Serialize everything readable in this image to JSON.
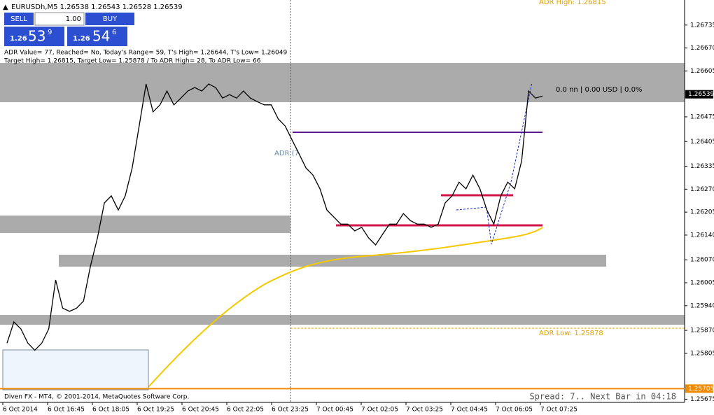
{
  "symbol_bar": "EURUSDh,M5  1.26538 1.26543 1.26528 1.26539",
  "trade_panel": {
    "sell": "SELL",
    "buy": "BUY",
    "lots": "1.00",
    "bid_big": "1.26",
    "bid_mid": "53",
    "bid_small": "9",
    "ask_big": "1.26",
    "ask_mid": "54",
    "ask_small": "6"
  },
  "info_lines": [
    "ADR Value= 77, Reached= No, Today's Range= 59, T's High= 1.26644, T's Low= 1.26049",
    "Target High= 1.26815, Target Low= 1.25878 / To ADR High= 28, To ADR Low= 66"
  ],
  "labels": {
    "adr_high": "ADR High: 1.26815",
    "adr_low": "ADR Low: 1.25878",
    "adr_tag": "ADR (7",
    "pnl": "0.0 nn | 0.00 USD | 0.0%"
  },
  "footer": "Diven FX - MT4, © 2001-2014, MetaQuotes Software Corp.",
  "status": "Spread: 7.. Next Bar in 04:18",
  "chart_data": {
    "type": "line",
    "time_labels": [
      "6 Oct 2014",
      "6 Oct 16:45",
      "6 Oct 18:05",
      "6 Oct 19:25",
      "6 Oct 20:45",
      "6 Oct 22:05",
      "6 Oct 23:25",
      "7 Oct 00:45",
      "7 Oct 02:05",
      "7 Oct 03:25",
      "7 Oct 04:45",
      "7 Oct 06:05",
      "7 Oct 07:25"
    ],
    "series": [
      {
        "name": "EURUSDh,M5",
        "color": "#000000",
        "values": [
          1.25834,
          1.25894,
          1.25874,
          1.25834,
          1.25814,
          1.25834,
          1.25874,
          1.26013,
          1.25933,
          1.25924,
          1.25933,
          1.25953,
          1.26052,
          1.26132,
          1.26231,
          1.26251,
          1.26211,
          1.26251,
          1.2633,
          1.26449,
          1.26568,
          1.26489,
          1.26509,
          1.26548,
          1.26509,
          1.26528,
          1.26548,
          1.26558,
          1.26548,
          1.26568,
          1.26558,
          1.26528,
          1.26538,
          1.26528,
          1.26548,
          1.26528,
          1.26518,
          1.26509,
          1.26509,
          1.26469,
          1.26449,
          1.26409,
          1.2637,
          1.2633,
          1.2631,
          1.26271,
          1.26211,
          1.26191,
          1.26171,
          1.26171,
          1.26152,
          1.26162,
          1.26132,
          1.26112,
          1.26142,
          1.26171,
          1.26171,
          1.26201,
          1.26181,
          1.26171,
          1.26171,
          1.26162,
          1.26171,
          1.26231,
          1.26251,
          1.2629,
          1.26271,
          1.2631,
          1.26271,
          1.26211,
          1.26171,
          1.26251,
          1.2629,
          1.26271,
          1.2635,
          1.26548,
          1.26528,
          1.26534
        ]
      }
    ],
    "ylim": [
      1.25666,
      1.26806
    ],
    "yticks": [
      1.26735,
      {
        "value": 1.2667,
        "label": "1.26670"
      },
      1.26605,
      1.26475,
      1.26405,
      1.26335,
      {
        "value": 1.2627,
        "label": "1.26270"
      },
      1.26205,
      {
        "value": 1.2614,
        "label": "1.26140"
      },
      {
        "value": 1.2607,
        "label": "1.26070"
      },
      1.26005,
      {
        "value": 1.2594,
        "label": "1.25940"
      },
      {
        "value": 1.2587,
        "label": "1.25870"
      },
      1.25805,
      1.25675
    ],
    "current_price": 1.26539,
    "level_price": 1.25705
  }
}
